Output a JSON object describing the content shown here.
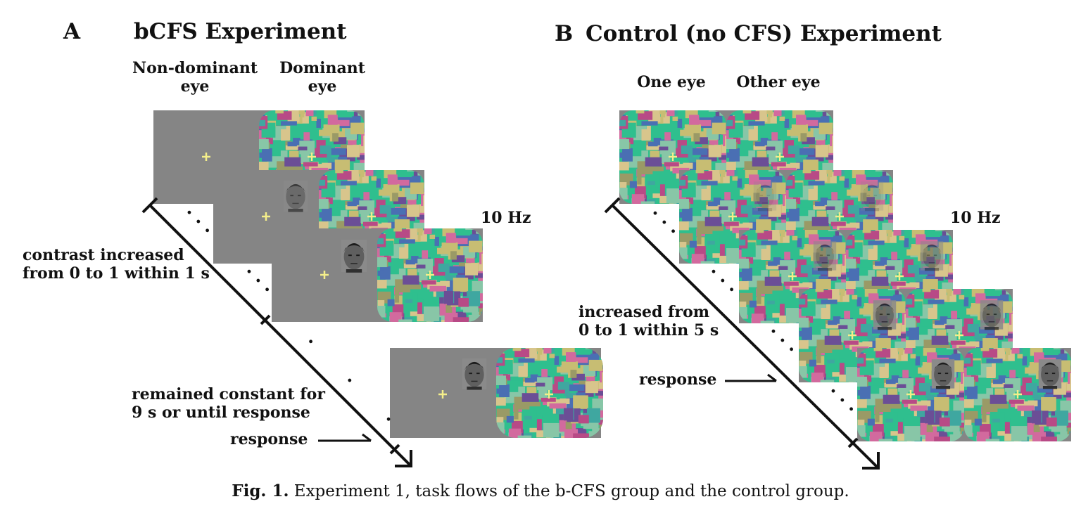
{
  "panel_a": {
    "letter": "A",
    "title": "bCFS Experiment",
    "eye_left": [
      "Non-dominant",
      "eye"
    ],
    "eye_right": [
      "Dominant",
      "eye"
    ],
    "frequency": "10 Hz",
    "dots": "· · ·",
    "phase1_text": [
      "contrast increased",
      "from 0 to 1 within 1 s"
    ],
    "phase2_text": [
      "remained constant for",
      "9 s or until response"
    ],
    "response": "response"
  },
  "panel_b": {
    "letter": "B",
    "title": "Control (no CFS) Experiment",
    "eye_left": "One eye",
    "eye_right": "Other eye",
    "frequency": "10 Hz",
    "dots": "· · ·",
    "phase1_text": [
      "increased from",
      "0 to 1 within 5 s"
    ],
    "response": "response"
  },
  "caption": {
    "label": "Fig. 1.",
    "text": "Experiment 1, task flows of the b-CFS group and the control group."
  },
  "colors": {
    "gray_background": "#858585",
    "fixation": "#f4ee8a",
    "mondrian": [
      "#2fbf8e",
      "#d26a9e",
      "#c7bd73",
      "#4a6fb3",
      "#9a9a66",
      "#3fa7a0",
      "#b84a86",
      "#d8c58c",
      "#6b4e96",
      "#88c6a7"
    ]
  }
}
